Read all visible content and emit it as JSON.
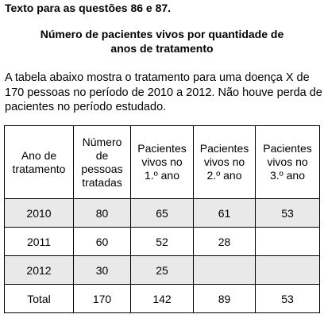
{
  "intro": "Texto para as questões 86 e 87.",
  "table_title": [
    "Número de pacientes vivos por quantidade de",
    "anos de tratamento"
  ],
  "description": [
    "A tabela abaixo mostra o tratamento para uma doença X de",
    "170 pessoas no período de 2010 a 2012. Não houve perda de",
    "pacientes no período estudado."
  ],
  "table": {
    "headers": [
      [
        "Ano de",
        "tratamento"
      ],
      [
        "Número",
        "de",
        "pessoas",
        "tratadas"
      ],
      [
        "Pacientes",
        "vivos no",
        "1.º ano"
      ],
      [
        "Pacientes",
        "vivos no",
        "2.º ano"
      ],
      [
        "Pacientes",
        "vivos no",
        "3.º ano"
      ]
    ],
    "rows": [
      [
        "2010",
        "80",
        "65",
        "61",
        "53"
      ],
      [
        "2011",
        "60",
        "52",
        "28",
        ""
      ],
      [
        "2012",
        "30",
        "25",
        "",
        ""
      ],
      [
        "Total",
        "170",
        "142",
        "89",
        "53"
      ]
    ]
  }
}
